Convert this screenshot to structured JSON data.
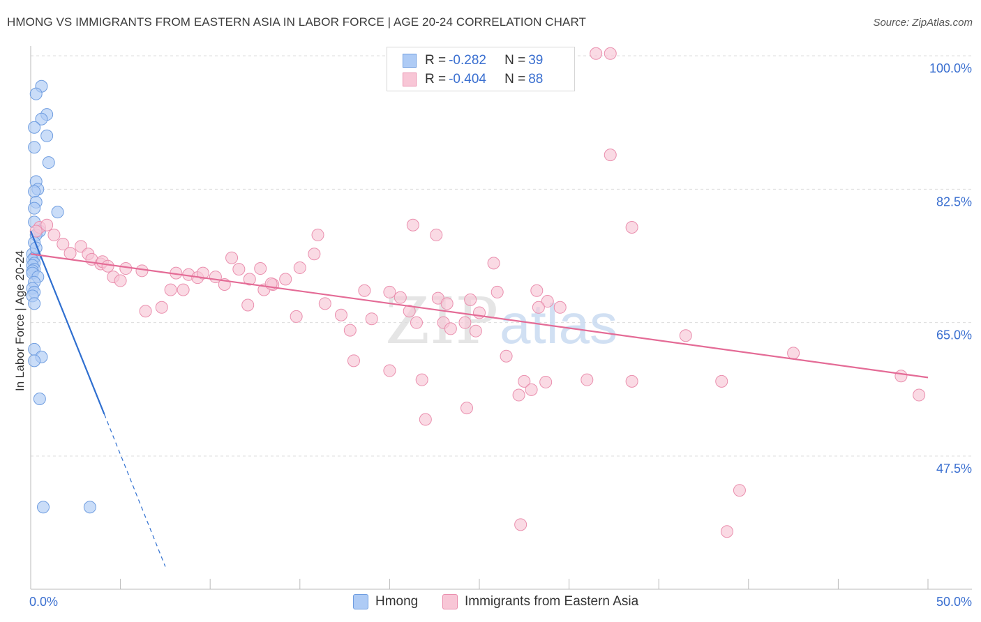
{
  "title": "HMONG VS IMMIGRANTS FROM EASTERN ASIA IN LABOR FORCE | AGE 20-24 CORRELATION CHART",
  "source": "Source: ZipAtlas.com",
  "watermark": {
    "zip": "ZIP",
    "atlas": "atlas"
  },
  "legend": {
    "rows": [
      {
        "r_label": "R = ",
        "r_value": "-0.282",
        "n_label": "N = ",
        "n_value": "39"
      },
      {
        "r_label": "R = ",
        "r_value": "-0.404",
        "n_label": "N = ",
        "n_value": "88"
      }
    ]
  },
  "colors": {
    "hmong_fill": "#aecbf5",
    "hmong_stroke": "#6f9de0",
    "hmong_line": "#2f6fd0",
    "eastasia_fill": "#f8c6d6",
    "eastasia_stroke": "#ea8fae",
    "eastasia_line": "#e46b96",
    "axis_label": "#3a6fd0",
    "grid": "#dcdcdc"
  },
  "chart_data": {
    "type": "scatter",
    "title": "HMONG VS IMMIGRANTS FROM EASTERN ASIA IN LABOR FORCE | AGE 20-24 CORRELATION CHART",
    "xlabel": "",
    "ylabel": "In Labor Force | Age 20-24",
    "xlim": [
      0,
      50
    ],
    "ylim": [
      33,
      102
    ],
    "x_tick_labels": [
      "0.0%",
      "50.0%"
    ],
    "y_ticks": [
      47.5,
      65.0,
      82.5,
      100.0
    ],
    "y_tick_labels": [
      "47.5%",
      "65.0%",
      "82.5%",
      "100.0%"
    ],
    "grid": true,
    "legend_position": "top-center",
    "series": [
      {
        "name": "Hmong",
        "r": -0.282,
        "n": 39,
        "trend": {
          "x0": 0.0,
          "y0": 77.0,
          "x1": 4.1,
          "y1": 53.0,
          "dash_to_x": 7.5,
          "dash_to_y": 33.0
        },
        "points": [
          [
            0.6,
            96.0
          ],
          [
            0.3,
            95.0
          ],
          [
            0.9,
            92.3
          ],
          [
            0.6,
            91.7
          ],
          [
            0.2,
            90.6
          ],
          [
            0.9,
            89.5
          ],
          [
            0.2,
            88.0
          ],
          [
            1.0,
            86.0
          ],
          [
            0.3,
            83.5
          ],
          [
            0.4,
            82.5
          ],
          [
            0.2,
            82.2
          ],
          [
            0.3,
            80.8
          ],
          [
            0.2,
            80.0
          ],
          [
            1.5,
            79.5
          ],
          [
            0.2,
            78.2
          ],
          [
            0.5,
            77.0
          ],
          [
            0.3,
            76.5
          ],
          [
            0.2,
            75.5
          ],
          [
            0.1,
            74.0
          ],
          [
            0.2,
            73.5
          ],
          [
            0.1,
            73.2
          ],
          [
            0.2,
            72.8
          ],
          [
            0.1,
            72.5
          ],
          [
            0.2,
            72.0
          ],
          [
            0.1,
            71.8
          ],
          [
            0.1,
            71.5
          ],
          [
            0.4,
            71.0
          ],
          [
            0.2,
            70.3
          ],
          [
            0.1,
            69.5
          ],
          [
            0.2,
            69.0
          ],
          [
            0.1,
            68.5
          ],
          [
            0.2,
            67.5
          ],
          [
            0.2,
            61.5
          ],
          [
            0.6,
            60.5
          ],
          [
            0.2,
            60.0
          ],
          [
            0.5,
            55.0
          ],
          [
            0.7,
            40.8
          ],
          [
            3.3,
            40.8
          ],
          [
            0.3,
            74.8
          ]
        ]
      },
      {
        "name": "Immigrants from Eastern Asia",
        "r": -0.404,
        "n": 88,
        "trend": {
          "x0": 0.0,
          "y0": 74.0,
          "x1": 50.0,
          "y1": 57.8
        },
        "points": [
          [
            31.5,
            100.3
          ],
          [
            32.3,
            100.3
          ],
          [
            32.3,
            87.0
          ],
          [
            33.5,
            77.5
          ],
          [
            21.3,
            77.8
          ],
          [
            22.6,
            76.5
          ],
          [
            16.0,
            76.5
          ],
          [
            0.5,
            77.5
          ],
          [
            0.9,
            77.8
          ],
          [
            0.3,
            77.0
          ],
          [
            1.3,
            76.5
          ],
          [
            1.8,
            75.3
          ],
          [
            2.8,
            75.0
          ],
          [
            3.2,
            74.0
          ],
          [
            2.2,
            74.1
          ],
          [
            3.4,
            73.3
          ],
          [
            3.9,
            72.7
          ],
          [
            4.0,
            73.0
          ],
          [
            4.3,
            72.4
          ],
          [
            5.3,
            72.1
          ],
          [
            6.2,
            71.8
          ],
          [
            4.6,
            71.0
          ],
          [
            5.0,
            70.5
          ],
          [
            8.1,
            71.5
          ],
          [
            8.8,
            71.3
          ],
          [
            9.3,
            70.9
          ],
          [
            9.6,
            71.5
          ],
          [
            10.3,
            71.0
          ],
          [
            11.2,
            73.5
          ],
          [
            11.6,
            72.0
          ],
          [
            12.2,
            70.7
          ],
          [
            10.8,
            70.0
          ],
          [
            13.0,
            69.3
          ],
          [
            13.5,
            70.0
          ],
          [
            14.2,
            70.7
          ],
          [
            15.0,
            72.2
          ],
          [
            15.8,
            74.0
          ],
          [
            16.4,
            67.5
          ],
          [
            17.3,
            66.0
          ],
          [
            18.0,
            60.0
          ],
          [
            17.8,
            64.0
          ],
          [
            18.6,
            69.2
          ],
          [
            19.0,
            65.5
          ],
          [
            20.0,
            58.7
          ],
          [
            20.0,
            69.0
          ],
          [
            21.1,
            66.5
          ],
          [
            21.5,
            65.0
          ],
          [
            20.6,
            68.3
          ],
          [
            22.7,
            68.2
          ],
          [
            23.2,
            67.5
          ],
          [
            23.0,
            65.0
          ],
          [
            24.2,
            65.0
          ],
          [
            24.5,
            68.0
          ],
          [
            25.0,
            66.3
          ],
          [
            21.8,
            57.5
          ],
          [
            22.0,
            52.3
          ],
          [
            24.3,
            53.8
          ],
          [
            25.8,
            72.8
          ],
          [
            26.0,
            69.0
          ],
          [
            27.2,
            55.5
          ],
          [
            27.5,
            57.3
          ],
          [
            27.9,
            56.2
          ],
          [
            28.7,
            57.2
          ],
          [
            28.2,
            69.2
          ],
          [
            28.8,
            67.8
          ],
          [
            29.5,
            67.0
          ],
          [
            28.3,
            67.0
          ],
          [
            26.5,
            60.6
          ],
          [
            31.0,
            57.5
          ],
          [
            27.3,
            38.5
          ],
          [
            33.5,
            57.3
          ],
          [
            36.5,
            63.3
          ],
          [
            38.5,
            57.3
          ],
          [
            39.5,
            43.0
          ],
          [
            38.8,
            37.6
          ],
          [
            42.5,
            61.0
          ],
          [
            48.5,
            58.0
          ],
          [
            49.5,
            55.5
          ],
          [
            6.4,
            66.5
          ],
          [
            7.3,
            67.0
          ],
          [
            7.8,
            69.3
          ],
          [
            8.5,
            69.3
          ],
          [
            12.1,
            67.3
          ],
          [
            14.8,
            65.8
          ],
          [
            12.8,
            72.1
          ],
          [
            13.4,
            70.1
          ],
          [
            23.4,
            64.2
          ],
          [
            24.8,
            63.9
          ]
        ]
      }
    ]
  }
}
